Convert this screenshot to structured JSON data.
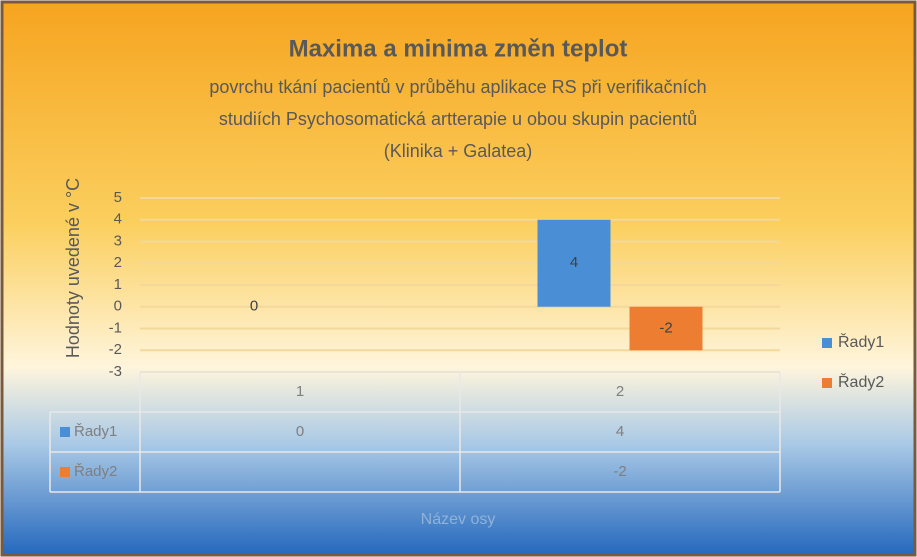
{
  "chart_data": {
    "type": "bar",
    "title": "Maxima a minima změn teplot",
    "subtitle": [
      "povrchu tkání pacientů v průběhu aplikace RS při verifikačních",
      "studiích Psychosomatická artterapie u obou skupin pacientů",
      "(Klinika + Galatea)"
    ],
    "y_axis_label": "Hodnoty uvedené v °C",
    "x_axis_label": "Název osy",
    "categories": [
      "1",
      "2"
    ],
    "series": [
      {
        "name": "Řady1",
        "color": "#4a8fd6",
        "values": [
          0,
          4
        ]
      },
      {
        "name": "Řady2",
        "color": "#ed7d31",
        "values": [
          null,
          -2
        ]
      }
    ],
    "ylim": [
      -3,
      5
    ],
    "yticks": [
      -3,
      -2,
      -1,
      0,
      1,
      2,
      3,
      4,
      5
    ],
    "grid": true,
    "legend": "right",
    "data_table": true
  }
}
